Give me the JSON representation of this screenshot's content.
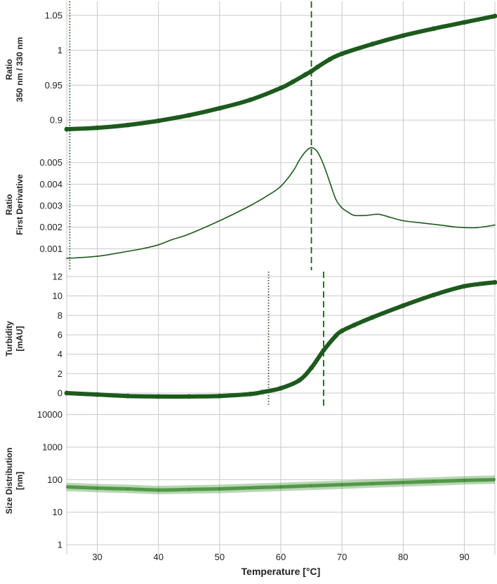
{
  "x_axis": {
    "label": "Temperature [°C]",
    "range": [
      25,
      95
    ],
    "ticks": [
      30,
      40,
      50,
      60,
      70,
      80,
      90
    ]
  },
  "colors": {
    "series": "#1d5a1d",
    "size_band": "#3a8a2e",
    "grid": "#c9c9c9",
    "text": "#222222"
  },
  "chart_data": [
    {
      "type": "line",
      "ylabel": "Ratio\n350 nm / 330 nm",
      "ylim": [
        0.875,
        1.07
      ],
      "yticks": [
        0.9,
        0.95,
        1,
        1.05
      ],
      "ytick_labels": [
        "0.9",
        "0.95",
        "1",
        "1.05"
      ],
      "grid": true,
      "style": "thick-markers",
      "x": [
        25,
        30,
        35,
        40,
        45,
        50,
        55,
        60,
        62,
        64,
        65,
        66,
        68,
        70,
        75,
        80,
        85,
        90,
        95
      ],
      "y": [
        0.887,
        0.889,
        0.893,
        0.899,
        0.907,
        0.917,
        0.929,
        0.946,
        0.955,
        0.965,
        0.97,
        0.976,
        0.987,
        0.995,
        1.009,
        1.021,
        1.031,
        1.04,
        1.049
      ],
      "markers": [
        {
          "x": 25.5,
          "style": "dotted"
        },
        {
          "x": 65,
          "style": "dashed"
        }
      ]
    },
    {
      "type": "line",
      "ylabel": "Ratio\nFirst Derivative",
      "ylim": [
        0.0,
        0.0061
      ],
      "yticks": [
        0.001,
        0.002,
        0.003,
        0.004,
        0.005
      ],
      "ytick_labels": [
        "0.001",
        "0.002",
        "0.003",
        "0.004",
        "0.005"
      ],
      "grid": true,
      "style": "thin",
      "x": [
        25,
        30,
        35,
        37,
        40,
        42,
        45,
        50,
        55,
        58,
        60,
        62,
        63,
        64,
        65,
        66,
        67,
        68,
        69,
        70,
        71,
        72,
        74,
        76,
        78,
        80,
        83,
        86,
        89,
        92,
        95
      ],
      "y": [
        0.00055,
        0.00065,
        0.00088,
        0.00098,
        0.00118,
        0.0014,
        0.00168,
        0.0023,
        0.003,
        0.0035,
        0.0039,
        0.0046,
        0.0051,
        0.0055,
        0.0057,
        0.0055,
        0.0049,
        0.0041,
        0.0033,
        0.0029,
        0.0027,
        0.00255,
        0.00255,
        0.0026,
        0.00245,
        0.0023,
        0.0022,
        0.0021,
        0.002,
        0.00198,
        0.0021
      ],
      "markers": [
        {
          "x": 25.5,
          "style": "dotted"
        },
        {
          "x": 65,
          "style": "dashed"
        }
      ]
    },
    {
      "type": "line",
      "ylabel": "Turbidity\n[mAU]",
      "ylim": [
        -1.3,
        12.5
      ],
      "yticks": [
        0,
        2,
        4,
        6,
        8,
        10,
        12
      ],
      "ytick_labels": [
        "0",
        "2",
        "4",
        "6",
        "8",
        "10",
        "12"
      ],
      "grid": true,
      "style": "thick-markers",
      "x": [
        25,
        30,
        35,
        40,
        45,
        50,
        55,
        57,
        60,
        63,
        65,
        67,
        69,
        70,
        72,
        75,
        80,
        85,
        90,
        95
      ],
      "y": [
        0.0,
        -0.15,
        -0.3,
        -0.35,
        -0.35,
        -0.3,
        -0.1,
        0.1,
        0.5,
        1.3,
        2.6,
        4.4,
        5.9,
        6.4,
        7.0,
        7.8,
        9.0,
        10.1,
        11.0,
        11.4
      ],
      "markers": [
        {
          "x": 58,
          "style": "dotted"
        },
        {
          "x": 67,
          "style": "dashed"
        }
      ]
    },
    {
      "type": "area",
      "ylabel": "Size Distribution\n[nm]",
      "yscale": "log",
      "ylim": [
        0.5,
        17000
      ],
      "yticks": [
        1,
        10,
        100,
        1000,
        10000
      ],
      "ytick_labels": [
        "1",
        "10",
        "100",
        "1000",
        "10000"
      ],
      "grid": true,
      "style": "band",
      "x": [
        25,
        30,
        35,
        40,
        45,
        50,
        55,
        60,
        65,
        70,
        75,
        80,
        85,
        90,
        95
      ],
      "y": [
        60,
        55,
        52,
        48,
        50,
        52,
        56,
        60,
        65,
        70,
        76,
        82,
        88,
        95,
        100
      ]
    }
  ]
}
